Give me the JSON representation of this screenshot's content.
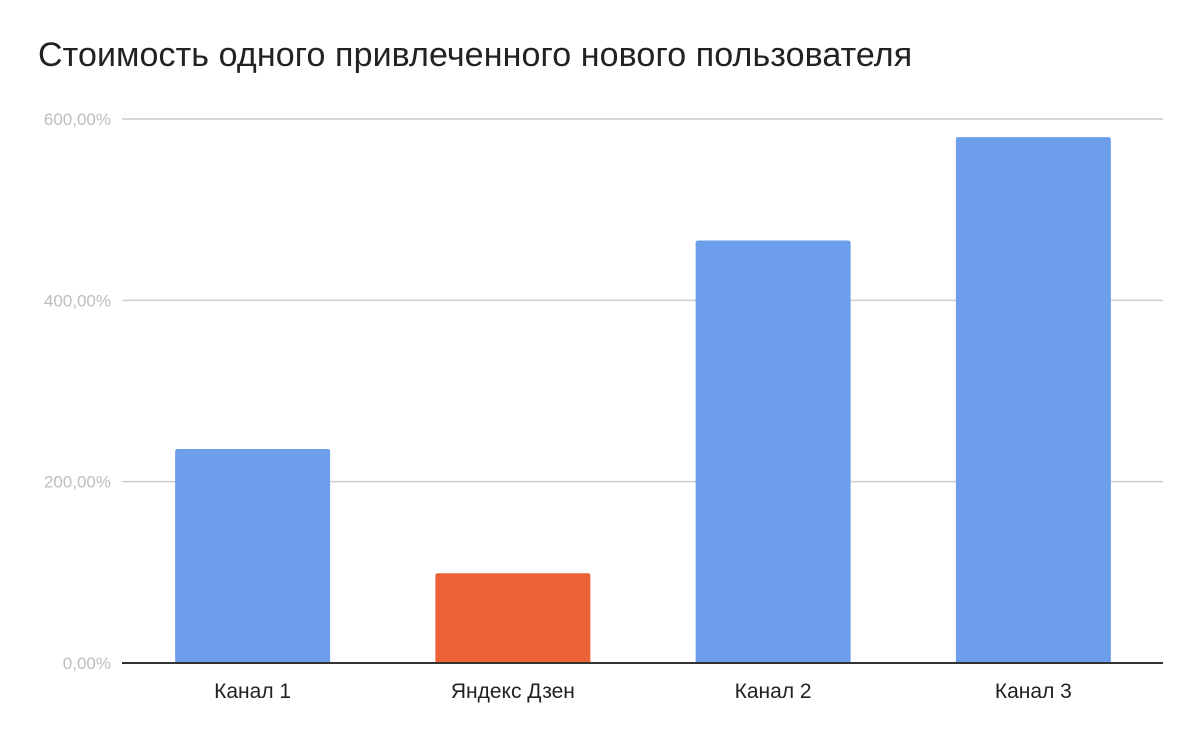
{
  "chart_data": {
    "type": "bar",
    "title": "Стоимость одного привлеченного нового пользователя",
    "xlabel": "",
    "ylabel": "",
    "categories": [
      "Канал 1",
      "Яндекс Дзен",
      "Канал 2",
      "Канал 3"
    ],
    "values": [
      236,
      99,
      466,
      580
    ],
    "value_unit": "%",
    "bar_colors": [
      "#6d9eeb",
      "#ea6235",
      "#6d9eeb",
      "#6d9eeb"
    ],
    "ylim": [
      0,
      600
    ],
    "yticks": [
      0,
      200,
      400,
      600
    ],
    "ytick_labels": [
      "0,00%",
      "200,00%",
      "400,00%",
      "600,00%"
    ],
    "grid": true,
    "legend": "none",
    "colors": {
      "gridline": "#cccccc",
      "axis": "#333333",
      "ytick_text": "#bdbdbd",
      "xtick_text": "#222222",
      "title_text": "#222222"
    }
  }
}
